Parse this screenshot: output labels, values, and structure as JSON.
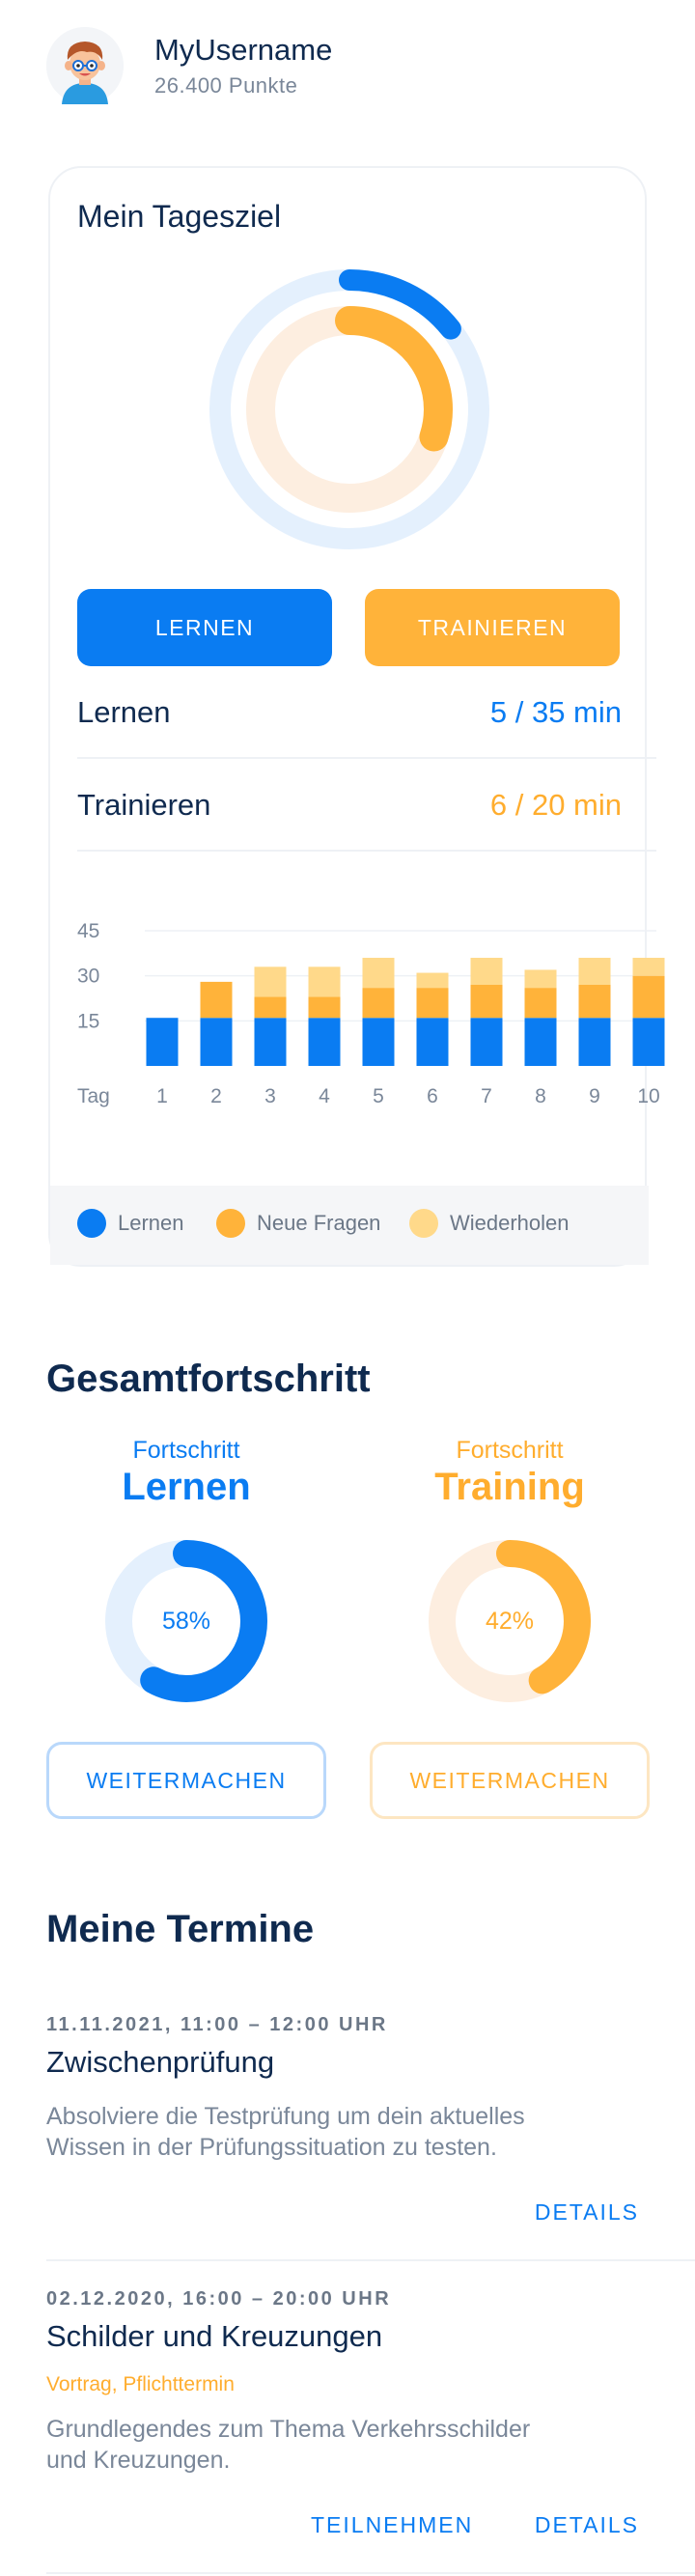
{
  "user": {
    "name": "MyUsername",
    "points": "26.400 Punkte"
  },
  "daily_goal": {
    "title": "Mein Tagesziel",
    "learn_ring_fraction": 0.143,
    "train_ring_fraction": 0.3,
    "buttons": {
      "learn": "LERNEN",
      "train": "TRAINIEREN"
    },
    "stats": [
      {
        "label": "Lernen",
        "value": "5 / 35 min"
      },
      {
        "label": "Trainieren",
        "value": "6 / 20 min"
      }
    ],
    "legend": {
      "learn": "Lernen",
      "new": "Neue Fragen",
      "repeat": "Wiederholen"
    }
  },
  "chart_data": {
    "type": "bar",
    "stacked": true,
    "xlabel": "Tag",
    "categories": [
      "1",
      "2",
      "3",
      "4",
      "5",
      "6",
      "7",
      "8",
      "9",
      "10"
    ],
    "y_ticks": [
      15,
      30,
      45
    ],
    "ylim": [
      0,
      45
    ],
    "series": [
      {
        "name": "Lernen",
        "values": [
          16,
          16,
          16,
          16,
          16,
          16,
          16,
          16,
          16,
          16
        ]
      },
      {
        "name": "Neue Fragen",
        "values": [
          0,
          12,
          7,
          7,
          10,
          10,
          11,
          10,
          11,
          14
        ]
      },
      {
        "name": "Wiederholen",
        "values": [
          0,
          0,
          10,
          10,
          10,
          5,
          9,
          6,
          9,
          6
        ]
      }
    ],
    "colors": [
      "#0a7cf2",
      "#ffb33a",
      "#ffd98a"
    ],
    "legend": "bottom"
  },
  "overall": {
    "title": "Gesamtfortschritt",
    "learn": {
      "sub": "Fortschritt",
      "label": "Lernen",
      "percent_text": "58%",
      "fraction": 0.58,
      "button": "WEITERMACHEN"
    },
    "training": {
      "sub": "Fortschritt",
      "label": "Training",
      "percent_text": "42%",
      "fraction": 0.42,
      "button": "WEITERMACHEN"
    }
  },
  "appointments": {
    "title": "Meine Termine",
    "items": [
      {
        "date": "11.11.2021, 11:00 – 12:00 UHR",
        "title": "Zwischenprüfung",
        "desc_line1": "Absolviere die Testprüfung um dein aktuelles",
        "desc_line2": "Wissen in der Prüfungssituation zu testen.",
        "details": "DETAILS"
      },
      {
        "date": "02.12.2020, 16:00 – 20:00 UHR",
        "title": "Schilder und Kreuzungen",
        "tag": "Vortrag, Pflichttermin",
        "desc_line1": "Grundlegendes zum Thema Verkehrsschilder",
        "desc_line2": "und Kreuzungen.",
        "join": "TEILNEHMEN",
        "details": "DETAILS"
      }
    ]
  },
  "colors": {
    "primary": "#0a7cf2",
    "accent": "#ffb33a",
    "accent_light": "#ffd98a",
    "navy": "#0f2a4f"
  }
}
